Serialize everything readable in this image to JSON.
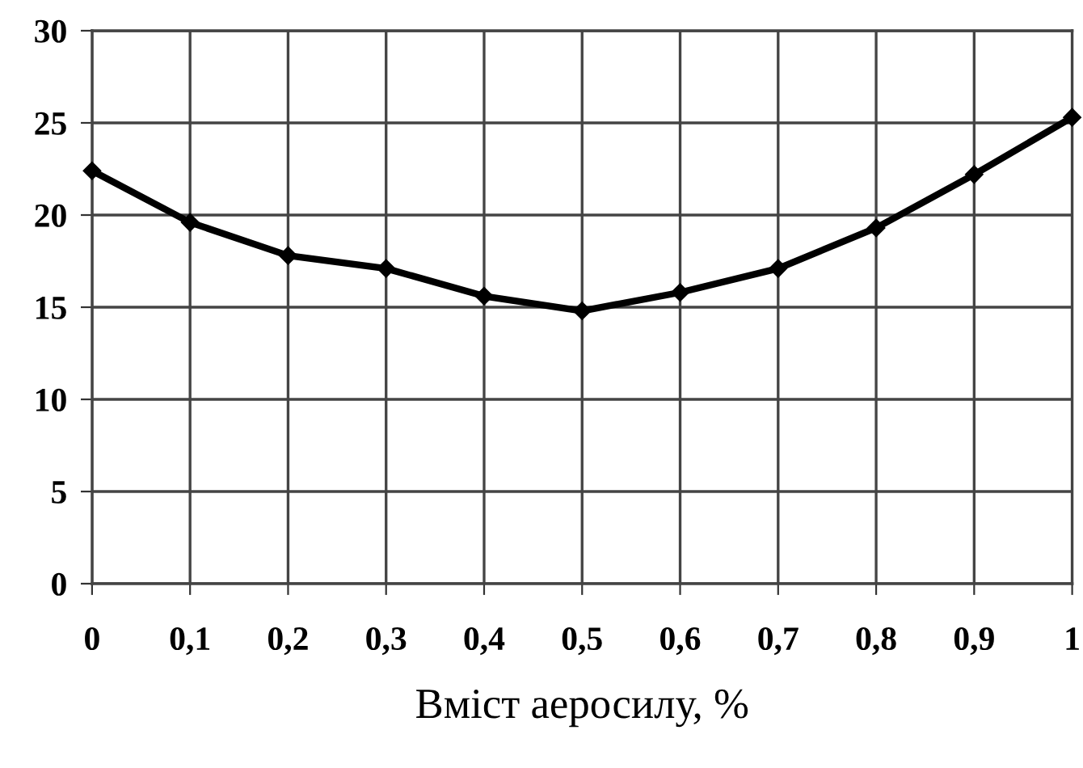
{
  "chart_data": {
    "type": "line",
    "xlabel": "Вміст аеросилу, %",
    "x": [
      0,
      0.1,
      0.2,
      0.3,
      0.4,
      0.5,
      0.6,
      0.7,
      0.8,
      0.9,
      1
    ],
    "series": [
      {
        "color": "#000000",
        "values": [
          22.4,
          19.6,
          17.8,
          17.1,
          15.6,
          14.8,
          15.8,
          17.1,
          19.3,
          22.2,
          25.3
        ]
      }
    ],
    "xlim": [
      0,
      1
    ],
    "ylim": [
      0,
      30
    ],
    "xticks": [
      0,
      {
        "value": 0.1,
        "label": "0,1"
      },
      {
        "value": 0.2,
        "label": "0,2"
      },
      {
        "value": 0.3,
        "label": "0,3"
      },
      {
        "value": 0.4,
        "label": "0,4"
      },
      {
        "value": 0.5,
        "label": "0,5"
      },
      {
        "value": 0.6,
        "label": "0,6"
      },
      {
        "value": 0.7,
        "label": "0,7"
      },
      {
        "value": 0.8,
        "label": "0,8"
      },
      {
        "value": 0.9,
        "label": "0,9"
      },
      1
    ],
    "yticks": [
      0,
      5,
      10,
      15,
      20,
      25,
      30
    ],
    "grid": true,
    "marker": "diamond",
    "line_style": "solid"
  }
}
